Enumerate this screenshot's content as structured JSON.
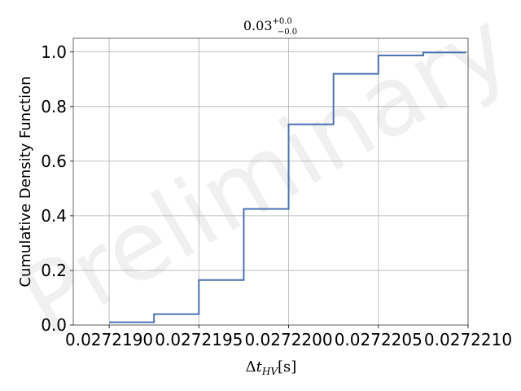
{
  "chart_data": {
    "type": "line",
    "step": true,
    "title": {
      "base": "0.03",
      "sup": "+0.0",
      "sub": "−0.0"
    },
    "xlabel": {
      "delta": "Δ",
      "t": "t",
      "sub": "HV",
      "unit": "[s]"
    },
    "ylabel": "Cumulative Density Function",
    "xlim": [
      0.0272188,
      0.027221
    ],
    "ylim": [
      0,
      1.05
    ],
    "xticks": [
      0.027219,
      0.0272195,
      0.02722,
      0.0272205,
      0.027221
    ],
    "xtick_labels": [
      "0.0272190",
      "0.0272195",
      "0.0272200",
      "0.0272205",
      "0.0272210"
    ],
    "yticks": [
      0,
      0.2,
      0.4,
      0.6,
      0.8,
      1.0
    ],
    "ytick_labels": [
      "0.0",
      "0.2",
      "0.4",
      "0.6",
      "0.8",
      "1.0"
    ],
    "grid": true,
    "watermark": "Preliminary",
    "series": [
      {
        "color": "#4c72b0",
        "x": [
          0.027219,
          0.02721925,
          0.02721925,
          0.0272195,
          0.0272195,
          0.02721975,
          0.02721975,
          0.02722,
          0.02722,
          0.02722025,
          0.02722025,
          0.0272205,
          0.0272205,
          0.02722075,
          0.02722075,
          0.02722099
        ],
        "y": [
          0.01,
          0.01,
          0.04,
          0.04,
          0.165,
          0.165,
          0.425,
          0.425,
          0.735,
          0.735,
          0.92,
          0.92,
          0.987,
          0.987,
          0.998,
          0.998
        ]
      }
    ]
  }
}
